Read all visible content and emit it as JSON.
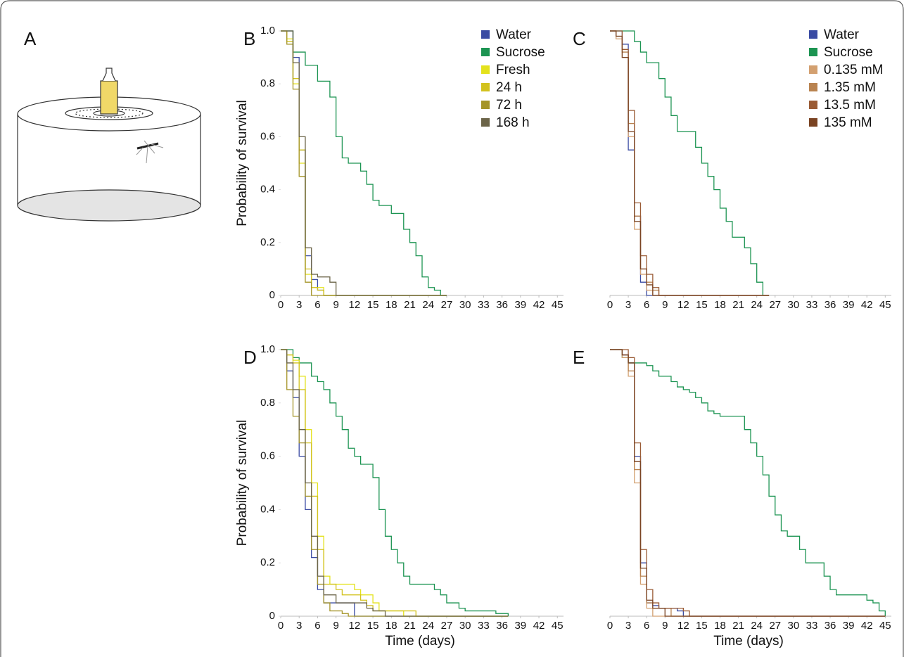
{
  "diagram": {
    "label": "A"
  },
  "chart_data": [
    {
      "type": "line",
      "step": true,
      "panel": "B",
      "y_label": "Probability of survival",
      "xlim": [
        0,
        46
      ],
      "ylim": [
        0,
        1
      ],
      "xticks": [
        0,
        3,
        6,
        9,
        12,
        15,
        18,
        21,
        24,
        27,
        30,
        33,
        36,
        39,
        42,
        45
      ],
      "yticks": [
        0,
        0.2,
        0.4,
        0.6,
        0.8,
        {
          "value": 1,
          "label": "1.0"
        }
      ],
      "x": [
        0,
        1,
        2,
        3,
        4,
        5,
        6,
        7,
        8,
        9,
        10,
        11,
        12,
        13,
        14,
        15,
        16,
        17,
        18,
        19,
        20,
        21,
        22,
        23,
        24,
        25,
        26,
        27
      ],
      "series": [
        {
          "name": "Water",
          "color": "#3a4ba3",
          "values": [
            1,
            1,
            0.9,
            0.55,
            0.15,
            0.06,
            0.02,
            0,
            0,
            0,
            0,
            0,
            0,
            0,
            0,
            0,
            0,
            0,
            0,
            0,
            0,
            0,
            0,
            0,
            0,
            0,
            0,
            0
          ]
        },
        {
          "name": "Sucrose",
          "color": "#1c9452",
          "values": [
            1,
            1,
            0.92,
            0.92,
            0.87,
            0.87,
            0.81,
            0.81,
            0.75,
            0.6,
            0.52,
            0.5,
            0.5,
            0.47,
            0.42,
            0.36,
            0.34,
            0.34,
            0.31,
            0.31,
            0.25,
            0.2,
            0.15,
            0.07,
            0.03,
            0.02,
            0,
            0
          ]
        },
        {
          "name": "Fresh",
          "color": "#e4e21c",
          "values": [
            1,
            0.97,
            0.8,
            0.5,
            0.08,
            0.03,
            0.03,
            0,
            0,
            0,
            0,
            0,
            0,
            0,
            0,
            0,
            0,
            0,
            0,
            0,
            0,
            0,
            0,
            0,
            0,
            0,
            0,
            0
          ]
        },
        {
          "name": "24 h",
          "color": "#d2c21e",
          "values": [
            1,
            0.96,
            0.82,
            0.55,
            0.1,
            0.03,
            0.02,
            0,
            0,
            0,
            0,
            0,
            0,
            0,
            0,
            0,
            0,
            0,
            0,
            0,
            0,
            0,
            0,
            0,
            0,
            0,
            0,
            0
          ]
        },
        {
          "name": "72 h",
          "color": "#a49428",
          "values": [
            1,
            0.95,
            0.78,
            0.45,
            0.05,
            0,
            0,
            0,
            0,
            0,
            0,
            0,
            0,
            0,
            0,
            0,
            0,
            0,
            0,
            0,
            0,
            0,
            0,
            0,
            0,
            0,
            0,
            0
          ]
        },
        {
          "name": "168 h",
          "color": "#6b6448",
          "values": [
            1,
            1,
            0.88,
            0.6,
            0.18,
            0.08,
            0.07,
            0.07,
            0.05,
            0,
            0,
            0,
            0,
            0,
            0,
            0,
            0,
            0,
            0,
            0,
            0,
            0,
            0,
            0,
            0,
            0,
            0,
            0
          ]
        }
      ]
    },
    {
      "type": "line",
      "step": true,
      "panel": "C",
      "xlim": [
        0,
        46
      ],
      "ylim": [
        0,
        1
      ],
      "xticks": [
        0,
        3,
        6,
        9,
        12,
        15,
        18,
        21,
        24,
        27,
        30,
        33,
        36,
        39,
        42,
        45
      ],
      "x": [
        0,
        1,
        2,
        3,
        4,
        5,
        6,
        7,
        8,
        9,
        10,
        11,
        12,
        13,
        14,
        15,
        16,
        17,
        18,
        19,
        20,
        21,
        22,
        23,
        24,
        25,
        26
      ],
      "series": [
        {
          "name": "Water",
          "color": "#3a4ba3",
          "values": [
            1,
            1,
            0.95,
            0.55,
            0.3,
            0.05,
            0,
            0,
            0,
            0,
            0,
            0,
            0,
            0,
            0,
            0,
            0,
            0,
            0,
            0,
            0,
            0,
            0,
            0,
            0,
            0,
            0
          ]
        },
        {
          "name": "Sucrose",
          "color": "#1c9452",
          "values": [
            1,
            1,
            1,
            1,
            0.96,
            0.92,
            0.88,
            0.88,
            0.82,
            0.75,
            0.68,
            0.62,
            0.62,
            0.62,
            0.56,
            0.5,
            0.45,
            0.4,
            0.33,
            0.28,
            0.22,
            0.22,
            0.18,
            0.12,
            0.05,
            0,
            0
          ]
        },
        {
          "name": "0.135 mM",
          "color": "#d3a070",
          "values": [
            1,
            0.97,
            0.9,
            0.6,
            0.25,
            0.08,
            0.02,
            0,
            0,
            0,
            0,
            0,
            0,
            0,
            0,
            0,
            0,
            0,
            0,
            0,
            0,
            0,
            0,
            0,
            0,
            0,
            0
          ]
        },
        {
          "name": "1.35 mM",
          "color": "#b98350",
          "values": [
            1,
            0.98,
            0.92,
            0.65,
            0.3,
            0.1,
            0.05,
            0.02,
            0,
            0,
            0,
            0,
            0,
            0,
            0,
            0,
            0,
            0,
            0,
            0,
            0,
            0,
            0,
            0,
            0,
            0,
            0
          ]
        },
        {
          "name": "13.5 mM",
          "color": "#9a5b35",
          "values": [
            1,
            1,
            0.93,
            0.7,
            0.35,
            0.15,
            0.08,
            0.03,
            0,
            0,
            0,
            0,
            0,
            0,
            0,
            0,
            0,
            0,
            0,
            0,
            0,
            0,
            0,
            0,
            0,
            0,
            0
          ]
        },
        {
          "name": "135 mM",
          "color": "#7a4322",
          "values": [
            1,
            0.98,
            0.9,
            0.62,
            0.28,
            0.1,
            0.04,
            0,
            0,
            0,
            0,
            0,
            0,
            0,
            0,
            0,
            0,
            0,
            0,
            0,
            0,
            0,
            0,
            0,
            0,
            0,
            0
          ]
        }
      ]
    },
    {
      "type": "line",
      "step": true,
      "panel": "D",
      "y_label": "Probability of survival",
      "x_label": "Time (days)",
      "xlim": [
        0,
        46
      ],
      "ylim": [
        0,
        1
      ],
      "xticks": [
        0,
        3,
        6,
        9,
        12,
        15,
        18,
        21,
        24,
        27,
        30,
        33,
        36,
        39,
        42,
        45
      ],
      "yticks": [
        0,
        0.2,
        0.4,
        0.6,
        0.8,
        {
          "value": 1,
          "label": "1.0"
        }
      ],
      "x": [
        0,
        1,
        2,
        3,
        4,
        5,
        6,
        7,
        8,
        9,
        10,
        11,
        12,
        13,
        14,
        15,
        16,
        17,
        18,
        19,
        20,
        21,
        22,
        23,
        24,
        25,
        26,
        27,
        28,
        29,
        30,
        31,
        32,
        33,
        34,
        35,
        36,
        37
      ],
      "series": [
        {
          "color": "#3a4ba3",
          "values": [
            1,
            0.92,
            0.82,
            0.6,
            0.4,
            0.22,
            0.1,
            0.05,
            0.05,
            0.05,
            0.05,
            0.05,
            0,
            0,
            0,
            0,
            0,
            0,
            0,
            0,
            0,
            0,
            0,
            0,
            0,
            0,
            0,
            0,
            0,
            0,
            0,
            0,
            0,
            0,
            0,
            0,
            0,
            0
          ]
        },
        {
          "color": "#1c9452",
          "values": [
            1,
            1,
            0.97,
            0.95,
            0.95,
            0.9,
            0.88,
            0.85,
            0.8,
            0.75,
            0.7,
            0.63,
            0.6,
            0.57,
            0.57,
            0.52,
            0.4,
            0.3,
            0.25,
            0.2,
            0.15,
            0.12,
            0.12,
            0.12,
            0.12,
            0.1,
            0.08,
            0.05,
            0.05,
            0.03,
            0.02,
            0.02,
            0.02,
            0.02,
            0.02,
            0.01,
            0.01,
            0
          ]
        },
        {
          "color": "#e4e21c",
          "values": [
            1,
            0.98,
            0.96,
            0.9,
            0.7,
            0.5,
            0.3,
            0.15,
            0.12,
            0.12,
            0.12,
            0.12,
            0.1,
            0.08,
            0.08,
            0.05,
            0.02,
            0.02,
            0.02,
            0.02,
            0,
            0,
            0,
            0,
            0,
            0,
            0,
            0,
            0,
            0,
            0,
            0,
            0,
            0,
            0,
            0,
            0,
            0
          ]
        },
        {
          "color": "#d2c21e",
          "values": [
            1,
            0.98,
            0.95,
            0.85,
            0.65,
            0.45,
            0.25,
            0.12,
            0.12,
            0.1,
            0.08,
            0.08,
            0.08,
            0.06,
            0.04,
            0.02,
            0.02,
            0.02,
            0.02,
            0.02,
            0.02,
            0.02,
            0,
            0,
            0,
            0,
            0,
            0,
            0,
            0,
            0,
            0,
            0,
            0,
            0,
            0,
            0,
            0
          ]
        },
        {
          "color": "#a49428",
          "values": [
            1,
            0.85,
            0.75,
            0.65,
            0.45,
            0.25,
            0.12,
            0.05,
            0.02,
            0.02,
            0.01,
            0,
            0,
            0,
            0,
            0,
            0,
            0,
            0,
            0,
            0,
            0,
            0,
            0,
            0,
            0,
            0,
            0,
            0,
            0,
            0,
            0,
            0,
            0,
            0,
            0,
            0,
            0
          ]
        },
        {
          "color": "#6b6448",
          "values": [
            1,
            0.95,
            0.85,
            0.7,
            0.5,
            0.3,
            0.15,
            0.08,
            0.08,
            0.05,
            0.05,
            0.05,
            0.05,
            0.05,
            0.03,
            0.02,
            0.02,
            0,
            0,
            0,
            0,
            0,
            0,
            0,
            0,
            0,
            0,
            0,
            0,
            0,
            0,
            0,
            0,
            0,
            0,
            0,
            0,
            0
          ]
        }
      ]
    },
    {
      "type": "line",
      "step": true,
      "panel": "E",
      "x_label": "Time (days)",
      "xlim": [
        0,
        46
      ],
      "ylim": [
        0,
        1
      ],
      "xticks": [
        0,
        3,
        6,
        9,
        12,
        15,
        18,
        21,
        24,
        27,
        30,
        33,
        36,
        39,
        42,
        45
      ],
      "x": [
        0,
        1,
        2,
        3,
        4,
        5,
        6,
        7,
        8,
        9,
        10,
        11,
        12,
        13,
        14,
        15,
        16,
        17,
        18,
        19,
        20,
        21,
        22,
        23,
        24,
        25,
        26,
        27,
        28,
        29,
        30,
        31,
        32,
        33,
        34,
        35,
        36,
        37,
        38,
        39,
        40,
        41,
        42,
        43,
        44,
        45
      ],
      "series": [
        {
          "color": "#3a4ba3",
          "values": [
            1,
            1,
            0.98,
            0.95,
            0.6,
            0.2,
            0.05,
            0.04,
            0.03,
            0.03,
            0.03,
            0.02,
            0,
            0,
            0,
            0,
            0,
            0,
            0,
            0,
            0,
            0,
            0,
            0,
            0,
            0,
            0,
            0,
            0,
            0,
            0,
            0,
            0,
            0,
            0,
            0,
            0,
            0,
            0,
            0,
            0,
            0,
            0,
            0,
            0,
            0
          ]
        },
        {
          "color": "#1c9452",
          "values": [
            1,
            1,
            0.97,
            0.95,
            0.95,
            0.95,
            0.94,
            0.92,
            0.9,
            0.9,
            0.88,
            0.86,
            0.85,
            0.84,
            0.82,
            0.8,
            0.77,
            0.76,
            0.75,
            0.75,
            0.75,
            0.75,
            0.7,
            0.65,
            0.6,
            0.53,
            0.45,
            0.38,
            0.32,
            0.3,
            0.3,
            0.25,
            0.2,
            0.2,
            0.2,
            0.15,
            0.1,
            0.08,
            0.08,
            0.08,
            0.08,
            0.08,
            0.06,
            0.05,
            0.02,
            0
          ]
        },
        {
          "color": "#d3a070",
          "values": [
            1,
            1,
            0.97,
            0.9,
            0.5,
            0.12,
            0.03,
            0,
            0,
            0,
            0,
            0,
            0,
            0,
            0,
            0,
            0,
            0,
            0,
            0,
            0,
            0,
            0,
            0,
            0,
            0,
            0,
            0,
            0,
            0,
            0,
            0,
            0,
            0,
            0,
            0,
            0,
            0,
            0,
            0,
            0,
            0,
            0,
            0,
            0,
            0
          ]
        },
        {
          "color": "#b98350",
          "values": [
            1,
            1,
            0.98,
            0.92,
            0.55,
            0.15,
            0.05,
            0.03,
            0.03,
            0.03,
            0,
            0,
            0,
            0,
            0,
            0,
            0,
            0,
            0,
            0,
            0,
            0,
            0,
            0,
            0,
            0,
            0,
            0,
            0,
            0,
            0,
            0,
            0,
            0,
            0,
            0,
            0,
            0,
            0,
            0,
            0,
            0,
            0,
            0,
            0,
            0
          ]
        },
        {
          "color": "#9a5b35",
          "values": [
            1,
            1,
            1,
            0.97,
            0.65,
            0.25,
            0.1,
            0.05,
            0.03,
            0.03,
            0.03,
            0.03,
            0.02,
            0,
            0,
            0,
            0,
            0,
            0,
            0,
            0,
            0,
            0,
            0,
            0,
            0,
            0,
            0,
            0,
            0,
            0,
            0,
            0,
            0,
            0,
            0,
            0,
            0,
            0,
            0,
            0,
            0,
            0,
            0,
            0,
            0
          ]
        },
        {
          "color": "#7a4322",
          "values": [
            1,
            1,
            0.98,
            0.95,
            0.58,
            0.18,
            0.06,
            0.03,
            0.03,
            0,
            0,
            0,
            0,
            0,
            0,
            0,
            0,
            0,
            0,
            0,
            0,
            0,
            0,
            0,
            0,
            0,
            0,
            0,
            0,
            0,
            0,
            0,
            0,
            0,
            0,
            0,
            0,
            0,
            0,
            0,
            0,
            0,
            0,
            0,
            0,
            0
          ]
        }
      ]
    }
  ]
}
